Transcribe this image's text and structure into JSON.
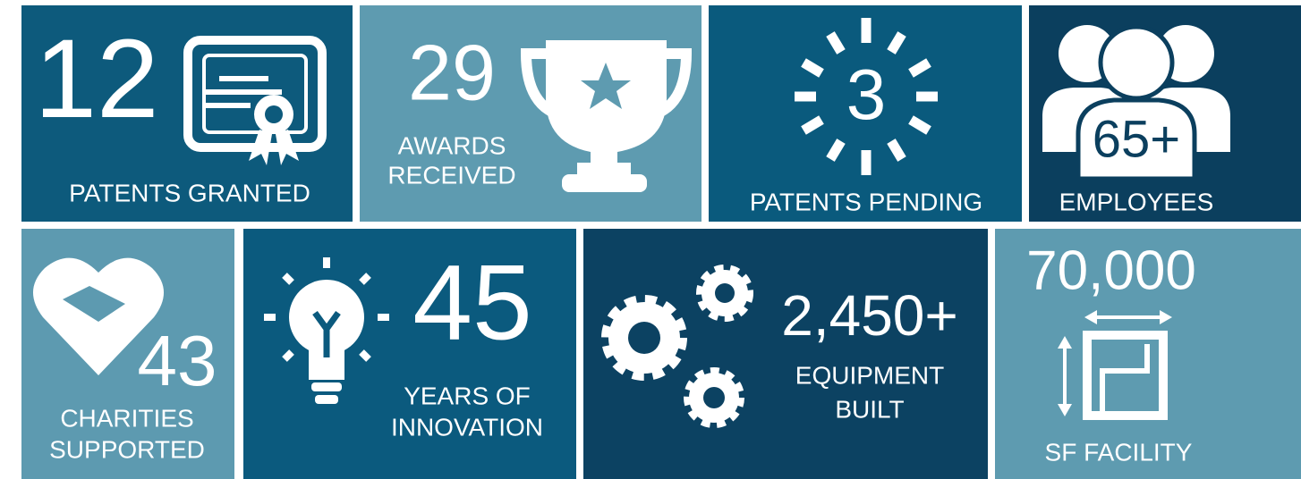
{
  "tiles": [
    {
      "number": "12",
      "label": [
        "PATENTS GRANTED"
      ]
    },
    {
      "number": "29",
      "label": [
        "AWARDS",
        "RECEIVED"
      ]
    },
    {
      "number": "3",
      "label": [
        "PATENTS PENDING"
      ]
    },
    {
      "number": "65+",
      "label": [
        "EMPLOYEES"
      ]
    },
    {
      "number": "43",
      "label": [
        "CHARITIES",
        "SUPPORTED"
      ]
    },
    {
      "number": "45",
      "label": [
        "YEARS OF",
        "INNOVATION"
      ]
    },
    {
      "number": "2,450+",
      "label": [
        "EQUIPMENT",
        "BUILT"
      ]
    },
    {
      "number": "70,000",
      "label": [
        "SF FACILITY"
      ]
    }
  ]
}
